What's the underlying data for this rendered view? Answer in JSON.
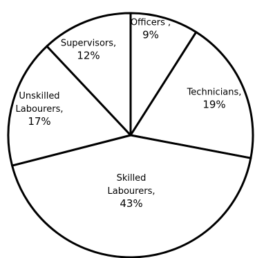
{
  "chart_data": {
    "type": "pie",
    "title": "",
    "start_angle_deg": 90,
    "direction": "clockwise",
    "slices": [
      {
        "name_lines": [
          "Officers ,"
        ],
        "label": "9%",
        "value": 9
      },
      {
        "name_lines": [
          "Technicians,"
        ],
        "label": "19%",
        "value": 19
      },
      {
        "name_lines": [
          "Skilled",
          "Labourers,"
        ],
        "label": "43%",
        "value": 43
      },
      {
        "name_lines": [
          "Unskilled",
          "Labourers,"
        ],
        "label": "17%",
        "value": 17
      },
      {
        "name_lines": [
          "Supervisors,"
        ],
        "label": "12%",
        "value": 12
      }
    ],
    "colors": {
      "fill": "#ffffff",
      "stroke": "#000000"
    }
  }
}
